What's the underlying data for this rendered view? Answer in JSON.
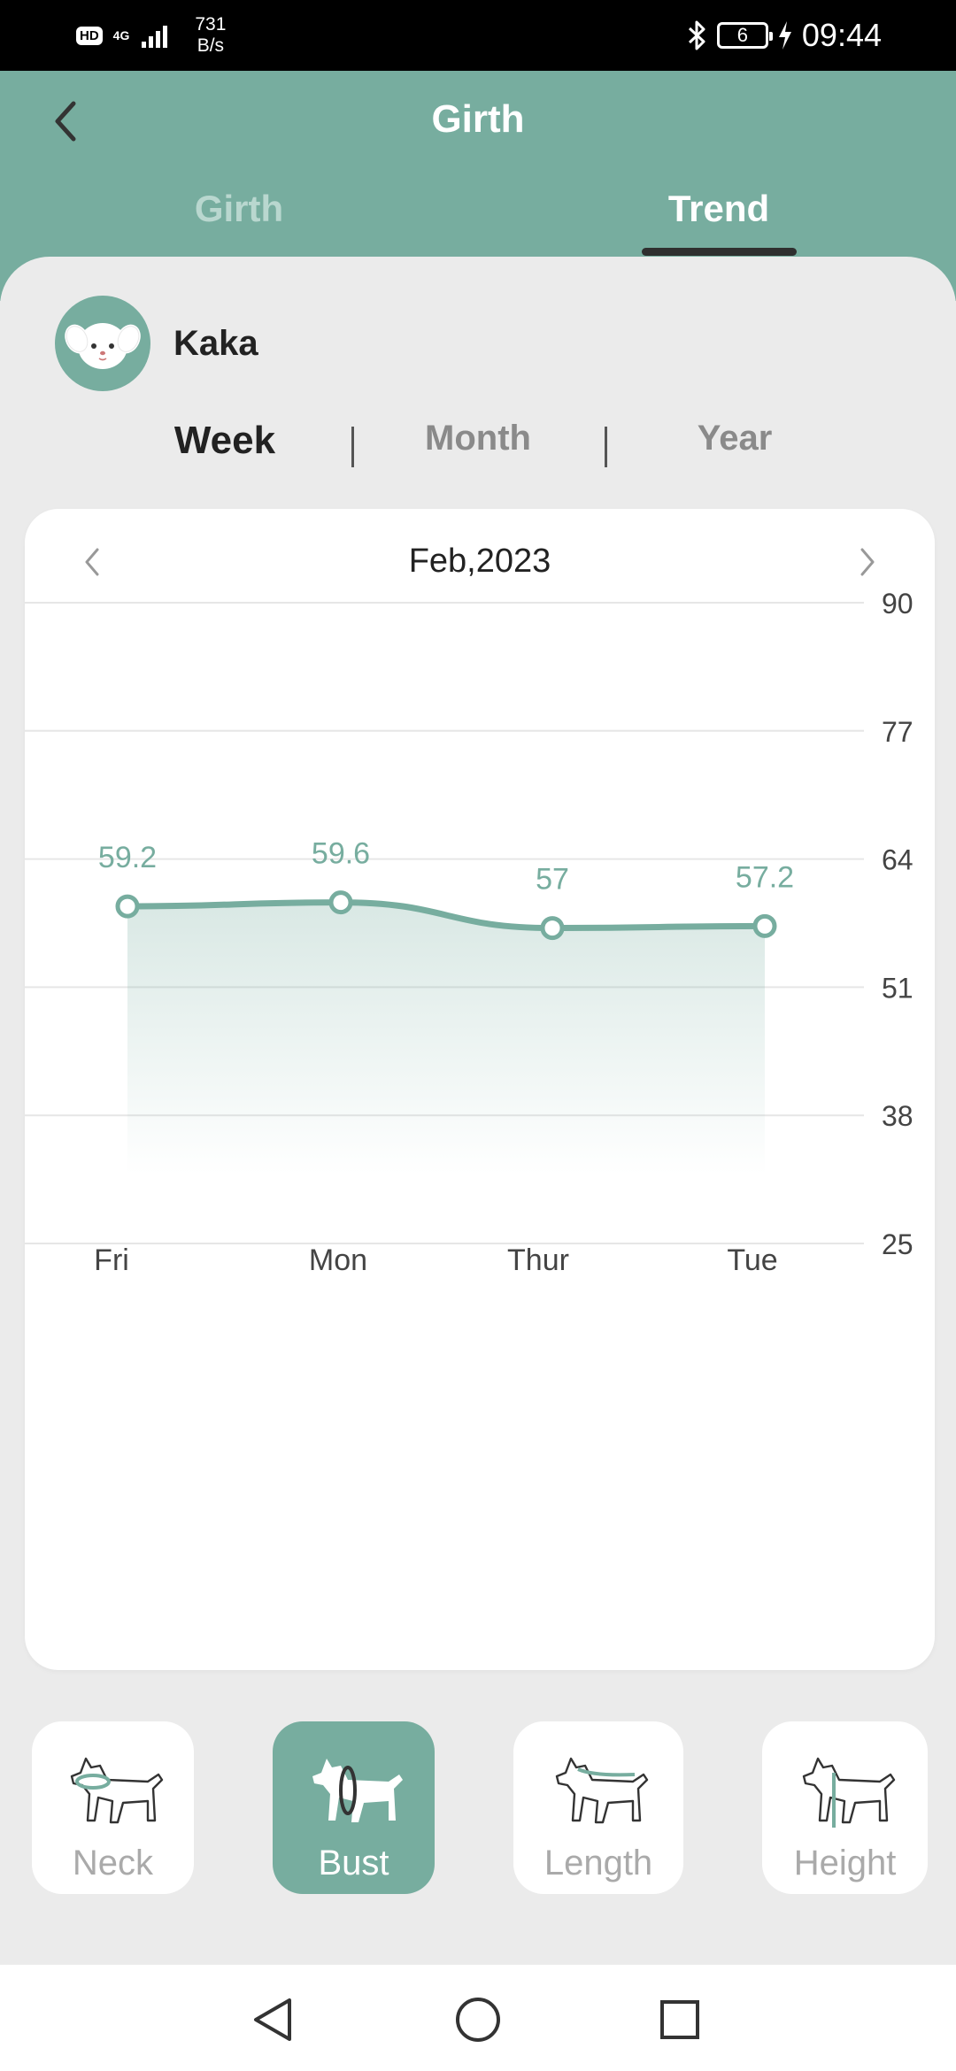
{
  "status_bar": {
    "hd": "HD",
    "network": "4G",
    "speed_value": "731",
    "speed_unit": "B/s",
    "battery": "6",
    "time": "09:44"
  },
  "header": {
    "title": "Girth",
    "tabs": [
      {
        "label": "Girth",
        "active": false
      },
      {
        "label": "Trend",
        "active": true
      }
    ]
  },
  "profile": {
    "name": "Kaka"
  },
  "periods": [
    {
      "label": "Week",
      "active": true
    },
    {
      "label": "Month",
      "active": false
    },
    {
      "label": "Year",
      "active": false
    }
  ],
  "chart_header": {
    "date": "Feb,2023"
  },
  "chart_data": {
    "type": "area",
    "categories": [
      "Fri",
      "Mon",
      "Thur",
      "Tue"
    ],
    "values": [
      59.2,
      59.6,
      57,
      57.2
    ],
    "y_ticks": [
      25,
      38,
      51,
      64,
      77,
      90
    ],
    "ylim": [
      25,
      90
    ],
    "grid": true,
    "color": "#77ad9f"
  },
  "measures": [
    {
      "label": "Neck",
      "active": false
    },
    {
      "label": "Bust",
      "active": true
    },
    {
      "label": "Length",
      "active": false
    },
    {
      "label": "Height",
      "active": false
    }
  ],
  "colors": {
    "accent": "#77ad9f",
    "accent_light": "#b9d7cf",
    "text_dark": "#222222",
    "muted": "#8a8a8a"
  }
}
